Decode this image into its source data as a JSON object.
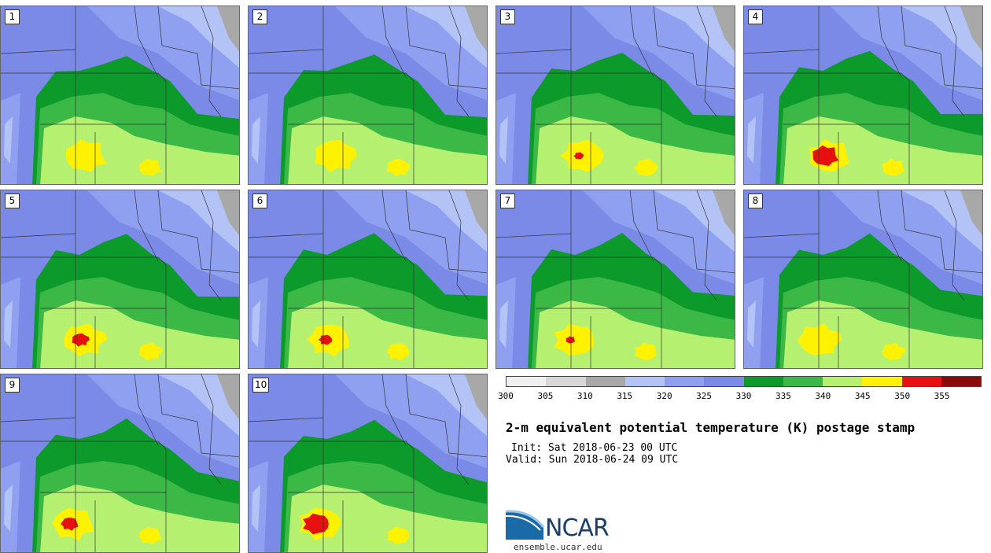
{
  "title": "2-m equivalent potential temperature (K) postage stamp",
  "init_text": "Init: Sat 2018-06-23 00 UTC",
  "valid_text": "Valid: Sun 2018-06-24 09 UTC",
  "logo_text": "NCAR",
  "logo_url": "ensemble.ucar.edu",
  "colorbar": {
    "ticks": [
      "300",
      "305",
      "310",
      "315",
      "320",
      "325",
      "330",
      "335",
      "340",
      "345",
      "350",
      "355"
    ],
    "colors": [
      "#f0f0f0",
      "#d7d7d7",
      "#a8a8a8",
      "#b4c3f5",
      "#8fa0f0",
      "#7b8ae6",
      "#0c9a2a",
      "#3cb846",
      "#b6f070",
      "#fff200",
      "#e61010",
      "#8b0a0a"
    ]
  },
  "members": [
    {
      "label": "1",
      "hotspot": 0
    },
    {
      "label": "2",
      "hotspot": 0
    },
    {
      "label": "3",
      "hotspot": 0.1
    },
    {
      "label": "4",
      "hotspot": 1
    },
    {
      "label": "5",
      "hotspot": 0.5
    },
    {
      "label": "6",
      "hotspot": 0.3
    },
    {
      "label": "7",
      "hotspot": 0.1
    },
    {
      "label": "8",
      "hotspot": 0
    },
    {
      "label": "9",
      "hotspot": 0.5
    },
    {
      "label": "10",
      "hotspot": 1
    }
  ]
}
